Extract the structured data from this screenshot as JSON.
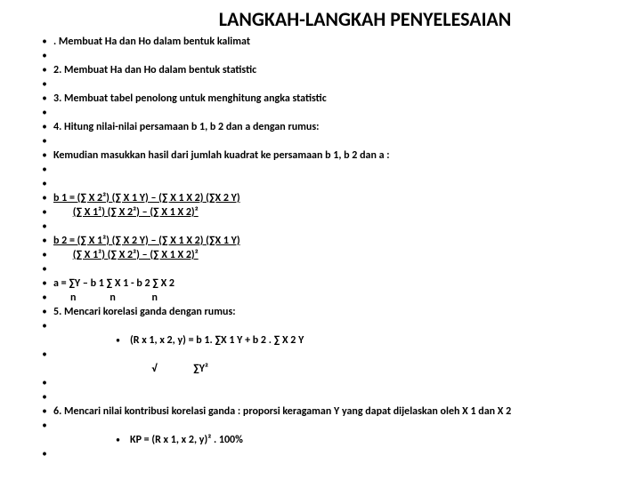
{
  "title": "LANGKAH-LANGKAH PENYELESAIAN",
  "lines": [
    ". Membuat Ha dan Ho dalam bentuk kalimat",
    "",
    "2. Membuat Ha dan Ho dalam bentuk statistic",
    "",
    "3. Membuat tabel penolong untuk menghitung angka statistic",
    "",
    "4. Hitung nilai-nilai persamaan b 1, b 2 dan a dengan rumus:",
    "",
    "Kemudian masukkan hasil dari jumlah kuadrat ke persamaan b 1, b 2 dan a :",
    "",
    ""
  ],
  "b1_num": "b 1 = (∑ X 2²) (∑  X 1 Y) – (∑ X 1 X 2) (∑X 2 Y)",
  "b1_den": "(∑ X 1²) (∑ X 2²) – (∑ X 1 X 2)²",
  "b2_num": "b 2 = (∑ X 1²) (∑  X 2 Y) – (∑ X 1 X 2) (∑X 1 Y)",
  "b2_den": "(∑ X 1²) (∑ X 2²) – (∑ X 1 X 2)²",
  "a1": "a = ∑Y – b 1 ∑ X 1  - b 2 ∑ X 2",
  "a2": "       n              n               n",
  "step5": "5. Mencari korelasi ganda dengan rumus:",
  "rformula": "(R x 1, x 2, y) =   b 1. ∑X 1 Y + b 2 . ∑ X 2 Y",
  "rsqrt": "         √               ∑Y²",
  "step6": "6. Mencari nilai kontribusi korelasi ganda : proporsi keragaman Y yang dapat dijelaskan oleh X 1 dan X 2",
  "kp": "KP = (R x 1, x 2, y)² . 100%",
  "colors": {
    "bg": "#ffffff",
    "text": "#000000"
  },
  "fonts": {
    "title_size": 22,
    "body_size": 12
  }
}
